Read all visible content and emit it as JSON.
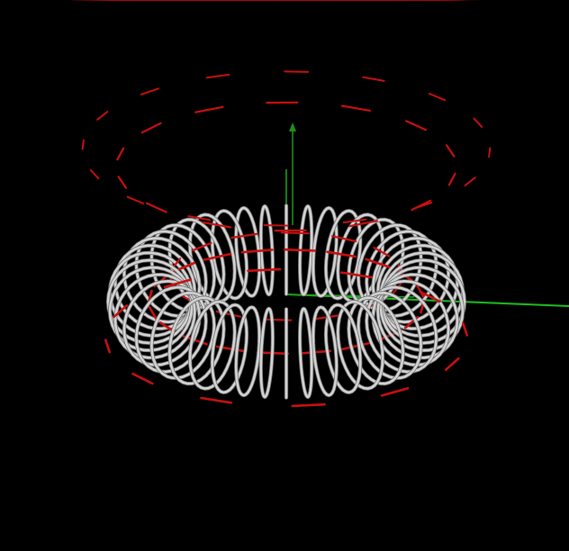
{
  "scene": {
    "background_color": "#000000",
    "torus": {
      "coil_color": "#d4d4d4",
      "coil_shadow_color": "#6e6e6e",
      "turns": 44
    },
    "field_arrows": {
      "color": "#c81010",
      "head_color": "#b00808"
    },
    "axes": {
      "x_color": "#1fbf1f",
      "y_color": "#18a318",
      "z_color": "#1f8f1f"
    }
  }
}
